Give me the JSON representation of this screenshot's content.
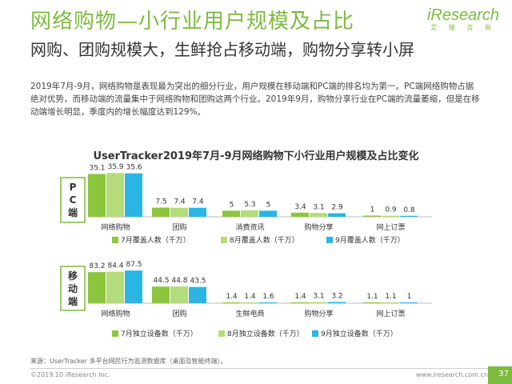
{
  "header": {
    "title": "网络购物—小行业用户规模及占比",
    "subtitle": "网购、团购规模大，生鲜抢占移动端，购物分享转小屏",
    "logo_text": "iResearch",
    "logo_sub": "艾 瑞 咨 询"
  },
  "description": [
    "2019年7月-9月，网络购物是表现最为突出的细分行业，用户规模在移动端和PC端的排名均为第一。PC端网络购物占据",
    "绝对优势，而移动端的流量集中于网络购物和团购这两个行业。2019年9月，购物分享行业在PC端的流量萎缩，但是在移",
    "动端增长明显，季度内的增长幅度达到129%。"
  ],
  "colors": {
    "accent": "#7dbb3f",
    "series": [
      "#8cc63f",
      "#b5dc7a",
      "#2bb5e5"
    ],
    "label_box": "#9ccc65"
  },
  "chart_data": [
    {
      "type": "bar",
      "title": "UserTracker2019年7月-9月网络购物下小行业用户规模及占比变化",
      "panel_label": "PC端",
      "categories": [
        "网络购物",
        "团购",
        "消费资讯",
        "购物分享",
        "网上订票"
      ],
      "series": [
        {
          "name": "7月覆盖人数（千万）",
          "values": [
            35.1,
            7.5,
            5.0,
            3.4,
            1.0
          ]
        },
        {
          "name": "8月覆盖人数（千万）",
          "values": [
            35.9,
            7.4,
            5.3,
            3.1,
            0.9
          ]
        },
        {
          "name": "9月覆盖人数（千万）",
          "values": [
            35.6,
            7.4,
            5.0,
            2.9,
            0.8
          ]
        }
      ],
      "ylim": [
        0,
        45
      ]
    },
    {
      "type": "bar",
      "panel_label": "移动端",
      "categories": [
        "网络购物",
        "团购",
        "生鲜电商",
        "购物分享",
        "网上订票"
      ],
      "series": [
        {
          "name": "7月独立设备数（千万）",
          "values": [
            83.2,
            44.5,
            1.4,
            1.4,
            1.1
          ]
        },
        {
          "name": "8月独立设备数（千万）",
          "values": [
            84.4,
            44.8,
            1.4,
            3.1,
            1.1
          ]
        },
        {
          "name": "9月独立设备数（千万）",
          "values": [
            87.5,
            43.5,
            1.6,
            3.2,
            1.0
          ]
        }
      ],
      "ylim": [
        0,
        105
      ]
    }
  ],
  "footer": {
    "source": "来源：UserTracker 多平台网民行为监测数据库（桌面及智能终端）。",
    "copyright": "©2019.10 iResearch Inc.",
    "url": "www.iresearch.com.cn",
    "page": "37"
  }
}
